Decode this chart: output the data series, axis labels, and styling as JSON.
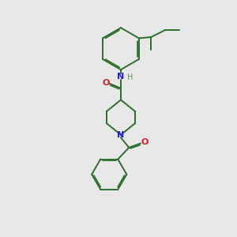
{
  "bg_color": "#e8e8e8",
  "bond_color": "#2d6e2d",
  "n_color": "#2222cc",
  "o_color": "#cc2222",
  "h_color": "#5a9a5a",
  "text_n": "N",
  "text_h": "H",
  "text_o": "O"
}
